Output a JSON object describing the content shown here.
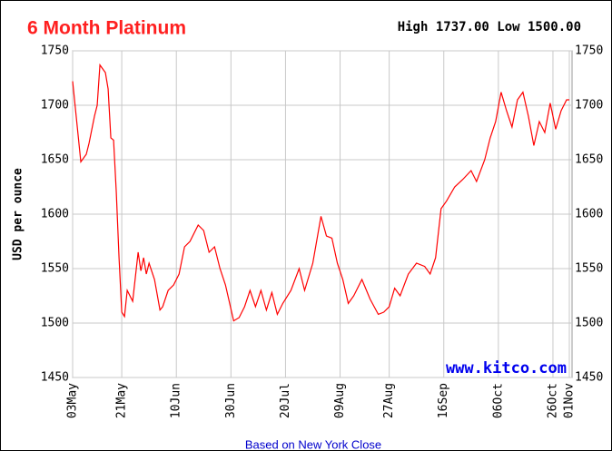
{
  "chart_data": {
    "type": "line",
    "title": "6 Month Platinum",
    "subtitle": "High 1737.00 Low 1500.00",
    "y_label": "USD per ounce",
    "watermark": "www.kitco.com",
    "x_label": "Based on New York Close",
    "xlim": [
      0,
      183
    ],
    "xticks": [
      {
        "value": 0,
        "label": "03May"
      },
      {
        "value": 18,
        "label": "21May"
      },
      {
        "value": 38,
        "label": "10Jun"
      },
      {
        "value": 58,
        "label": "30Jun"
      },
      {
        "value": 78,
        "label": "20Jul"
      },
      {
        "value": 98,
        "label": "09Aug"
      },
      {
        "value": 116,
        "label": "27Aug"
      },
      {
        "value": 136,
        "label": "16Sep"
      },
      {
        "value": 156,
        "label": "06Oct"
      },
      {
        "value": 176,
        "label": "26Oct"
      },
      {
        "value": 182,
        "label": "01Nov"
      }
    ],
    "ylim": [
      1450,
      1750
    ],
    "yticks": [
      1450,
      1500,
      1550,
      1600,
      1650,
      1700,
      1750
    ],
    "grid": true,
    "series": [
      {
        "name": "Platinum",
        "color": "#ff0000",
        "x": [
          0,
          3,
          5,
          6,
          8,
          9,
          10,
          12,
          13,
          14,
          15,
          16,
          17,
          18,
          19,
          20,
          22,
          24,
          25,
          26,
          27,
          28,
          30,
          32,
          33,
          35,
          37,
          39,
          41,
          43,
          46,
          48,
          50,
          52,
          54,
          56,
          59,
          61,
          63,
          65,
          67,
          69,
          71,
          73,
          75,
          77,
          80,
          83,
          85,
          88,
          91,
          93,
          95,
          97,
          99,
          101,
          103,
          106,
          109,
          112,
          114,
          116,
          118,
          120,
          123,
          126,
          129,
          131,
          133,
          135,
          137,
          140,
          143,
          146,
          148,
          151,
          153,
          155,
          157,
          159,
          161,
          163,
          165,
          167,
          169,
          171,
          173,
          175,
          177,
          179,
          181,
          182
        ],
        "values": [
          1722,
          1648,
          1655,
          1665,
          1690,
          1700,
          1737,
          1730,
          1715,
          1670,
          1668,
          1620,
          1560,
          1510,
          1506,
          1530,
          1520,
          1565,
          1548,
          1560,
          1545,
          1555,
          1540,
          1512,
          1515,
          1530,
          1535,
          1545,
          1570,
          1575,
          1590,
          1585,
          1565,
          1570,
          1550,
          1535,
          1502,
          1505,
          1515,
          1530,
          1515,
          1530,
          1512,
          1528,
          1508,
          1518,
          1530,
          1550,
          1530,
          1555,
          1598,
          1580,
          1578,
          1555,
          1540,
          1518,
          1525,
          1540,
          1522,
          1508,
          1510,
          1515,
          1532,
          1525,
          1545,
          1555,
          1552,
          1545,
          1560,
          1605,
          1612,
          1625,
          1632,
          1640,
          1630,
          1650,
          1670,
          1685,
          1712,
          1695,
          1680,
          1705,
          1712,
          1690,
          1663,
          1685,
          1675,
          1702,
          1678,
          1695,
          1705,
          1705
        ]
      }
    ]
  }
}
